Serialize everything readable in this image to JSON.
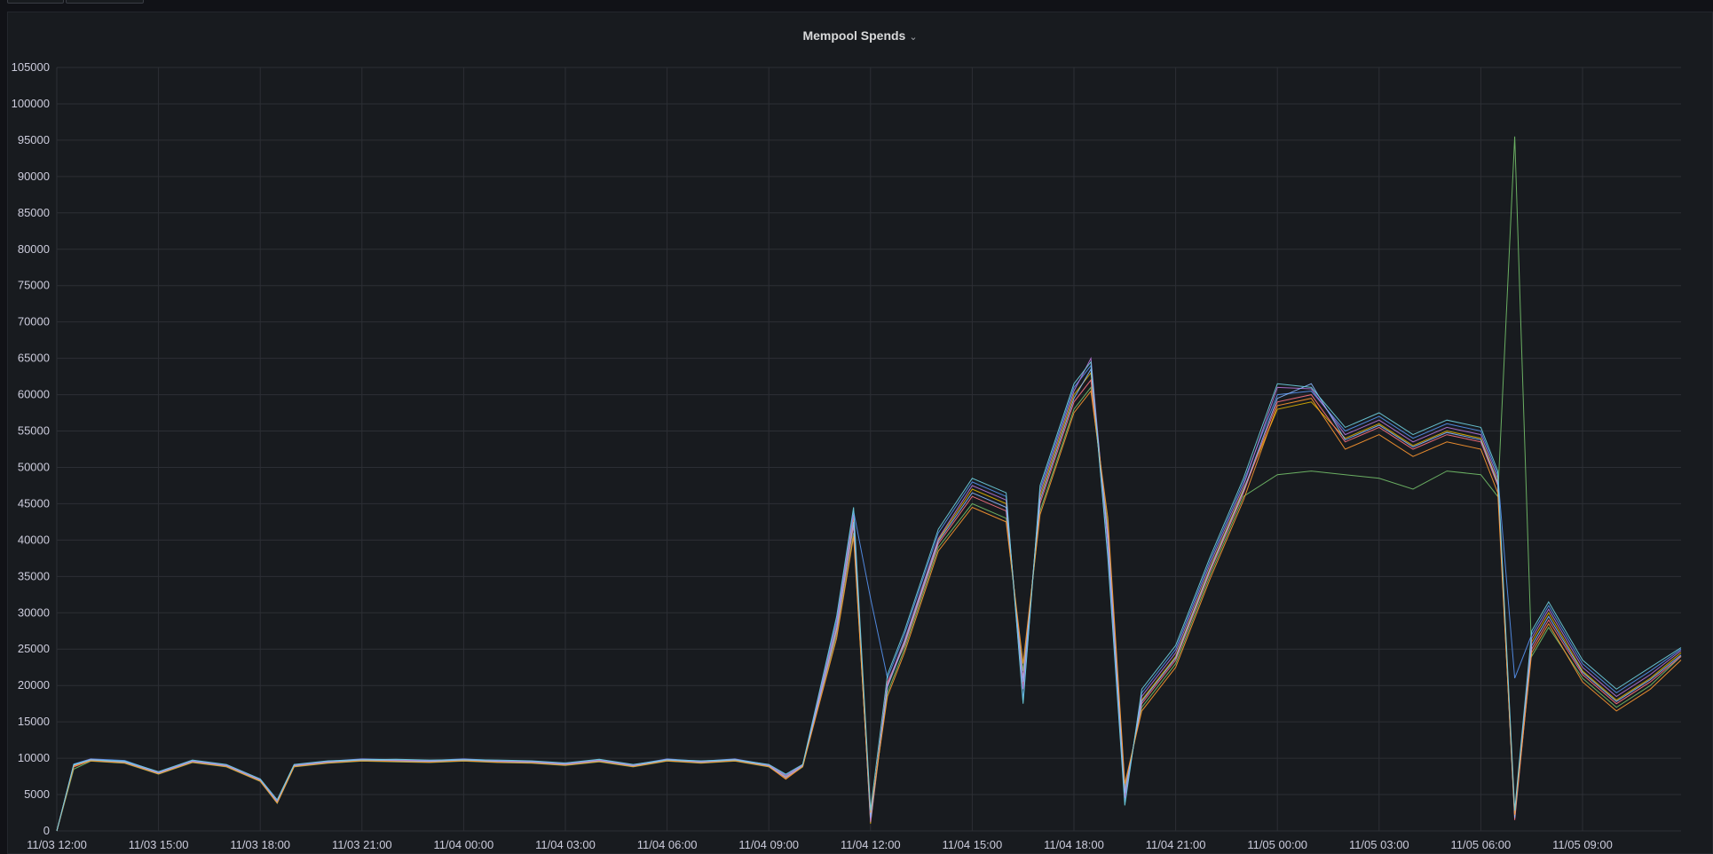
{
  "panel": {
    "title": "Mempool Spends",
    "chevron": "⌄"
  },
  "chart_data": {
    "type": "line",
    "title": "Mempool Spends",
    "xlabel": "",
    "ylabel": "",
    "ylim": [
      0,
      105000
    ],
    "yticks": [
      0,
      5000,
      10000,
      15000,
      20000,
      25000,
      30000,
      35000,
      40000,
      45000,
      50000,
      55000,
      60000,
      65000,
      70000,
      75000,
      80000,
      85000,
      90000,
      95000,
      100000,
      105000
    ],
    "xlim": [
      "11/03 12:00",
      "11/05 13:00"
    ],
    "xticks": [
      "11/03 12:00",
      "11/03 15:00",
      "11/03 18:00",
      "11/03 21:00",
      "11/04 00:00",
      "11/04 03:00",
      "11/04 06:00",
      "11/04 09:00",
      "11/04 12:00",
      "11/04 15:00",
      "11/04 18:00",
      "11/04 21:00",
      "11/05 00:00",
      "11/05 03:00",
      "11/05 06:00",
      "11/05 09:00"
    ],
    "grid": true,
    "legend": "none",
    "series_count_note": "many overlapping series",
    "x": [
      "11/03 12:00",
      "11/03 12:30",
      "11/03 13:00",
      "11/03 14:00",
      "11/03 15:00",
      "11/03 16:00",
      "11/03 17:00",
      "11/03 18:00",
      "11/03 18:30",
      "11/03 19:00",
      "11/03 20:00",
      "11/03 21:00",
      "11/03 22:00",
      "11/03 23:00",
      "11/04 00:00",
      "11/04 01:00",
      "11/04 02:00",
      "11/04 03:00",
      "11/04 04:00",
      "11/04 05:00",
      "11/04 06:00",
      "11/04 07:00",
      "11/04 08:00",
      "11/04 09:00",
      "11/04 09:30",
      "11/04 10:00",
      "11/04 11:00",
      "11/04 11:30",
      "11/04 12:00",
      "11/04 12:30",
      "11/04 13:00",
      "11/04 14:00",
      "11/04 15:00",
      "11/04 16:00",
      "11/04 16:30",
      "11/04 17:00",
      "11/04 18:00",
      "11/04 18:30",
      "11/04 19:00",
      "11/04 19:30",
      "11/04 20:00",
      "11/04 21:00",
      "11/04 22:00",
      "11/04 23:00",
      "11/05 00:00",
      "11/05 01:00",
      "11/05 02:00",
      "11/05 03:00",
      "11/05 04:00",
      "11/05 05:00",
      "11/05 06:00",
      "11/05 06:30",
      "11/05 07:00",
      "11/05 07:30",
      "11/05 08:00",
      "11/05 09:00",
      "11/05 10:00",
      "11/05 11:00",
      "11/05 12:00"
    ],
    "series": [
      {
        "color": "#e0b400",
        "values": [
          0,
          9000,
          9800,
          9500,
          8000,
          9600,
          9000,
          7000,
          4000,
          9000,
          9500,
          9800,
          9700,
          9600,
          9800,
          9600,
          9500,
          9200,
          9700,
          9000,
          9800,
          9500,
          9800,
          9000,
          7500,
          9000,
          28000,
          43000,
          1000,
          20000,
          26000,
          40000,
          47000,
          45000,
          20000,
          46000,
          60000,
          63000,
          40000,
          5000,
          18000,
          24000,
          36000,
          47000,
          58000,
          59000,
          54000,
          56000,
          53000,
          55000,
          54000,
          48000,
          2000,
          26000,
          30000,
          22000,
          18000,
          21000,
          24500
        ]
      },
      {
        "color": "#73bf69",
        "values": [
          0,
          8500,
          9600,
          9300,
          7800,
          9400,
          8800,
          6800,
          3800,
          8800,
          9300,
          9600,
          9500,
          9400,
          9600,
          9400,
          9300,
          9000,
          9500,
          8800,
          9600,
          9300,
          9600,
          8800,
          7200,
          8800,
          27000,
          41000,
          2000,
          19000,
          25000,
          39000,
          45000,
          43000,
          22000,
          44000,
          58000,
          61000,
          42000,
          6000,
          17000,
          23000,
          35000,
          46000,
          49000,
          49500,
          49000,
          48500,
          47000,
          49500,
          49000,
          46000,
          95500,
          24000,
          28000,
          21000,
          17000,
          20000,
          24000
        ]
      },
      {
        "color": "#5794f2",
        "values": [
          0,
          9200,
          9900,
          9700,
          8100,
          9700,
          9100,
          7100,
          4200,
          9100,
          9600,
          9900,
          9800,
          9700,
          9900,
          9700,
          9600,
          9300,
          9800,
          9100,
          9900,
          9600,
          9900,
          9100,
          7700,
          9100,
          29000,
          44000,
          32000,
          21000,
          27000,
          41000,
          48000,
          46000,
          18000,
          47000,
          61000,
          64000,
          38000,
          4000,
          19000,
          25000,
          37000,
          48000,
          60000,
          60500,
          55000,
          57000,
          54000,
          56000,
          55000,
          49000,
          21000,
          27000,
          31000,
          23000,
          19000,
          22000,
          25000
        ]
      },
      {
        "color": "#ff7383",
        "values": [
          0,
          8800,
          9700,
          9400,
          7900,
          9500,
          8900,
          6900,
          3900,
          8900,
          9400,
          9700,
          9600,
          9500,
          9700,
          9500,
          9400,
          9100,
          9600,
          8900,
          9700,
          9400,
          9700,
          8900,
          7300,
          8900,
          27500,
          42000,
          1500,
          20500,
          25500,
          39500,
          46000,
          44000,
          21000,
          45000,
          59000,
          62000,
          41000,
          5500,
          17500,
          23500,
          35500,
          46500,
          59000,
          60000,
          53500,
          55500,
          52500,
          54500,
          53500,
          47500,
          1500,
          25000,
          29000,
          21500,
          17500,
          20500,
          24000
        ]
      },
      {
        "color": "#b877d9",
        "values": [
          0,
          9100,
          9850,
          9550,
          8050,
          9650,
          9050,
          7050,
          4100,
          9050,
          9550,
          9850,
          9750,
          9650,
          9850,
          9650,
          9550,
          9250,
          9750,
          9050,
          9850,
          9550,
          9850,
          9050,
          7600,
          9050,
          28500,
          43500,
          1200,
          20200,
          26200,
          40200,
          47500,
          45500,
          19500,
          46500,
          60500,
          65000,
          39500,
          4500,
          18500,
          24500,
          36500,
          47500,
          61000,
          60800,
          54500,
          56500,
          53500,
          55500,
          54500,
          48500,
          2500,
          26500,
          30500,
          22500,
          18500,
          21500,
          24800
        ]
      },
      {
        "color": "#8ab8ff",
        "values": [
          0,
          9050,
          9750,
          9450,
          7950,
          9550,
          8950,
          6950,
          3950,
          8950,
          9450,
          9750,
          9650,
          9550,
          9750,
          9550,
          9450,
          9150,
          9650,
          8950,
          9750,
          9450,
          9750,
          8950,
          7400,
          8950,
          27800,
          42500,
          1800,
          19800,
          25800,
          39800,
          46500,
          44500,
          20500,
          45500,
          59500,
          63500,
          40500,
          5200,
          17800,
          23800,
          35800,
          46800,
          59500,
          61500,
          53800,
          55800,
          52800,
          54800,
          53800,
          47800,
          1800,
          25500,
          29500,
          21800,
          17800,
          20800,
          24200
        ]
      },
      {
        "color": "#ff9830",
        "values": [
          0,
          8900,
          9650,
          9350,
          7850,
          9450,
          8850,
          6850,
          3850,
          8850,
          9350,
          9650,
          9550,
          9450,
          9650,
          9450,
          9350,
          9050,
          9550,
          8850,
          9650,
          9350,
          9650,
          8850,
          7100,
          8850,
          26500,
          40500,
          2500,
          18500,
          24500,
          38500,
          44500,
          42500,
          23000,
          43500,
          57500,
          60500,
          43000,
          6500,
          16500,
          22500,
          34500,
          45500,
          58500,
          59500,
          52500,
          54500,
          51500,
          53500,
          52500,
          46500,
          2200,
          24500,
          28500,
          20500,
          16500,
          19500,
          23500
        ]
      },
      {
        "color": "#6ed0e0",
        "values": [
          0,
          9150,
          9800,
          9600,
          8150,
          9750,
          9150,
          7150,
          4300,
          9150,
          9650,
          9800,
          9850,
          9750,
          9800,
          9750,
          9650,
          9350,
          9850,
          9150,
          9800,
          9650,
          9800,
          9150,
          7800,
          9150,
          29500,
          44500,
          2800,
          21500,
          27500,
          41500,
          48500,
          46500,
          17500,
          47500,
          61500,
          64500,
          37500,
          3500,
          19500,
          25500,
          37500,
          48500,
          61500,
          61000,
          55500,
          57500,
          54500,
          56500,
          55500,
          49500,
          2800,
          27500,
          31500,
          23500,
          19500,
          22500,
          25200
        ]
      }
    ]
  }
}
